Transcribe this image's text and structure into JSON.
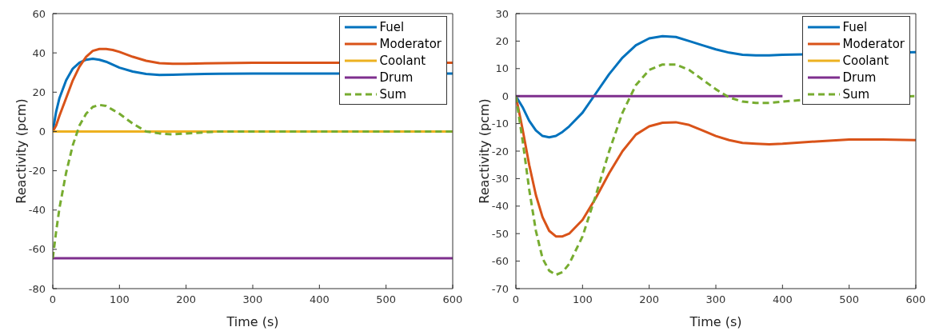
{
  "chart_data": [
    {
      "type": "line",
      "xlabel": "Time (s)",
      "ylabel": "Reactivity (pcm)",
      "xlim": [
        0,
        600
      ],
      "xticks": [
        0,
        100,
        200,
        300,
        400,
        500,
        600
      ],
      "ylim": [
        -80,
        60
      ],
      "yticks": [
        -80,
        -60,
        -40,
        -20,
        0,
        20,
        40,
        60
      ],
      "legend": "top right",
      "marker": "none",
      "x": [
        0,
        5,
        10,
        20,
        30,
        40,
        50,
        60,
        70,
        80,
        90,
        100,
        120,
        140,
        160,
        180,
        200,
        250,
        300,
        400,
        500,
        600
      ],
      "series": [
        {
          "name": "Fuel",
          "color": "#0072bd",
          "line_style": "solid",
          "values": [
            0,
            10,
            17,
            26,
            32,
            35,
            36.5,
            37,
            36.5,
            35.5,
            34,
            32.5,
            30.5,
            29.3,
            28.8,
            28.9,
            29.1,
            29.4,
            29.5,
            29.5,
            null,
            29.5
          ]
        },
        {
          "name": "Moderator",
          "color": "#d95319",
          "line_style": "solid",
          "values": [
            0,
            3,
            8,
            17,
            26,
            33,
            38,
            41,
            42,
            42,
            41.5,
            40.5,
            38,
            36,
            34.8,
            34.5,
            34.5,
            34.8,
            35,
            35,
            null,
            35
          ]
        },
        {
          "name": "Coolant",
          "color": "#edb120",
          "line_style": "solid",
          "values": [
            0,
            0,
            0,
            0,
            0,
            0,
            0,
            0,
            0,
            0,
            0,
            0,
            0,
            0,
            0,
            0,
            0,
            0,
            0,
            0,
            0,
            0
          ]
        },
        {
          "name": "Drum",
          "color": "#7e2f8e",
          "line_style": "solid",
          "values": [
            -64.5,
            -64.5,
            -64.5,
            -64.5,
            -64.5,
            -64.5,
            -64.5,
            -64.5,
            -64.5,
            -64.5,
            -64.5,
            -64.5,
            -64.5,
            -64.5,
            -64.5,
            -64.5,
            -64.5,
            -64.5,
            -64.5,
            -64.5,
            -64.5,
            -64.5
          ]
        },
        {
          "name": "Sum",
          "color": "#77ac30",
          "line_style": "dashed",
          "values": [
            -64.5,
            -51,
            -39,
            -21,
            -7,
            3,
            9,
            12.5,
            13.5,
            13,
            11,
            9,
            4,
            0,
            -1,
            -1.5,
            -1,
            0,
            0,
            0,
            0,
            0
          ]
        }
      ]
    },
    {
      "type": "line",
      "xlabel": "Time (s)",
      "ylabel": "Reactivity (pcm)",
      "xlim": [
        0,
        600
      ],
      "xticks": [
        0,
        100,
        200,
        300,
        400,
        500,
        600
      ],
      "ylim": [
        -70,
        30
      ],
      "yticks": [
        -70,
        -60,
        -50,
        -40,
        -30,
        -20,
        -10,
        0,
        10,
        20,
        30
      ],
      "legend": "top right",
      "marker": "none",
      "x": [
        0,
        10,
        20,
        30,
        40,
        50,
        60,
        70,
        80,
        100,
        120,
        140,
        160,
        180,
        200,
        220,
        240,
        260,
        280,
        300,
        320,
        340,
        360,
        380,
        400,
        450,
        500,
        550,
        600
      ],
      "series": [
        {
          "name": "Fuel",
          "color": "#0072bd",
          "line_style": "solid",
          "values": [
            0,
            -4,
            -9,
            -12.5,
            -14.5,
            -15,
            -14.5,
            -13,
            -11,
            -6,
            1,
            8,
            14,
            18.5,
            21,
            21.8,
            21.5,
            20,
            18.5,
            17,
            15.8,
            15,
            14.8,
            14.8,
            15,
            null,
            null,
            null,
            16
          ]
        },
        {
          "name": "Moderator",
          "color": "#d95319",
          "line_style": "solid",
          "values": [
            0,
            -12,
            -25,
            -36,
            -44,
            -49,
            -51,
            -51,
            -50,
            -45,
            -37,
            -28,
            -20,
            -14,
            -11,
            -9.7,
            -9.5,
            -10.5,
            -12.5,
            -14.5,
            -16,
            -17,
            -17.3,
            -17.5,
            -17.3,
            -16.5,
            -15.8,
            -15.8,
            -16
          ]
        },
        {
          "name": "Coolant",
          "color": "#edb120",
          "line_style": "solid",
          "values": [
            null,
            null,
            null,
            null,
            null,
            null,
            null,
            null,
            null,
            null,
            null,
            null,
            null,
            null,
            null,
            null,
            null,
            null,
            null,
            null,
            null,
            null,
            null,
            null,
            null,
            null,
            null,
            null,
            null
          ]
        },
        {
          "name": "Drum",
          "color": "#7e2f8e",
          "line_style": "solid",
          "values": [
            0,
            0,
            0,
            0,
            0,
            0,
            0,
            0,
            0,
            0,
            0,
            0,
            0,
            0,
            0,
            0,
            0,
            0,
            0,
            0,
            0,
            0,
            0,
            0,
            0,
            null,
            null,
            null,
            null
          ]
        },
        {
          "name": "Sum",
          "color": "#77ac30",
          "line_style": "dashed",
          "values": [
            0,
            -16,
            -34,
            -49,
            -59,
            -63.5,
            -65,
            -64,
            -61,
            -51,
            -36,
            -20,
            -6,
            4,
            9.5,
            11.5,
            11.5,
            9.5,
            6,
            2.5,
            -0.5,
            -2,
            -2.5,
            -2.5,
            -2,
            -1,
            null,
            null,
            0
          ]
        }
      ]
    }
  ]
}
